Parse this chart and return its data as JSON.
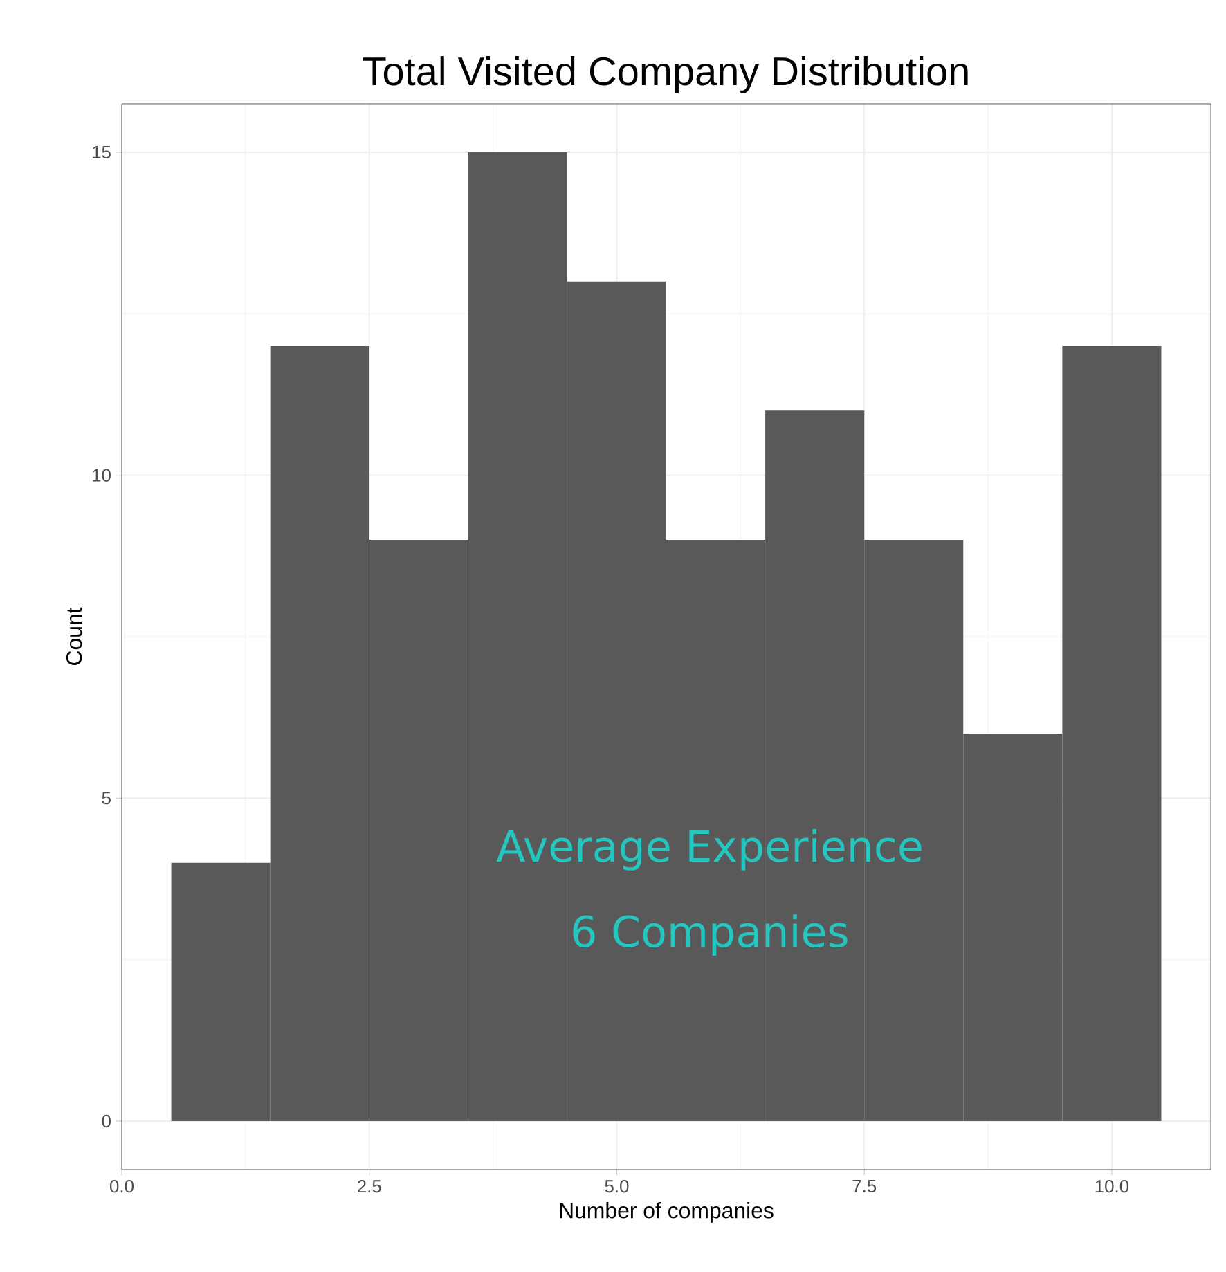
{
  "chart_data": {
    "type": "histogram",
    "title": "Total Visited Company Distribution",
    "xlabel": "Number of companies",
    "ylabel": "Count",
    "bins": [
      0.5,
      1.5,
      2.5,
      3.5,
      4.5,
      5.5,
      6.5,
      7.5,
      8.5,
      9.5,
      10.5
    ],
    "values": [
      4,
      12,
      9,
      15,
      13,
      9,
      11,
      9,
      6,
      12
    ],
    "color": "#595959",
    "xlim": [
      0,
      11
    ],
    "ylim": [
      -0.75,
      15.75
    ],
    "xticks": [
      {
        "value": 0,
        "label": "0.0"
      },
      {
        "value": 2.5,
        "label": "2.5"
      },
      {
        "value": 5,
        "label": "5.0"
      },
      {
        "value": 7.5,
        "label": "7.5"
      },
      {
        "value": 10,
        "label": "10.0"
      }
    ],
    "yticks": [
      0,
      5,
      10,
      15
    ],
    "grid": true,
    "annotations": [
      "Average Experience",
      "6 Companies"
    ]
  }
}
